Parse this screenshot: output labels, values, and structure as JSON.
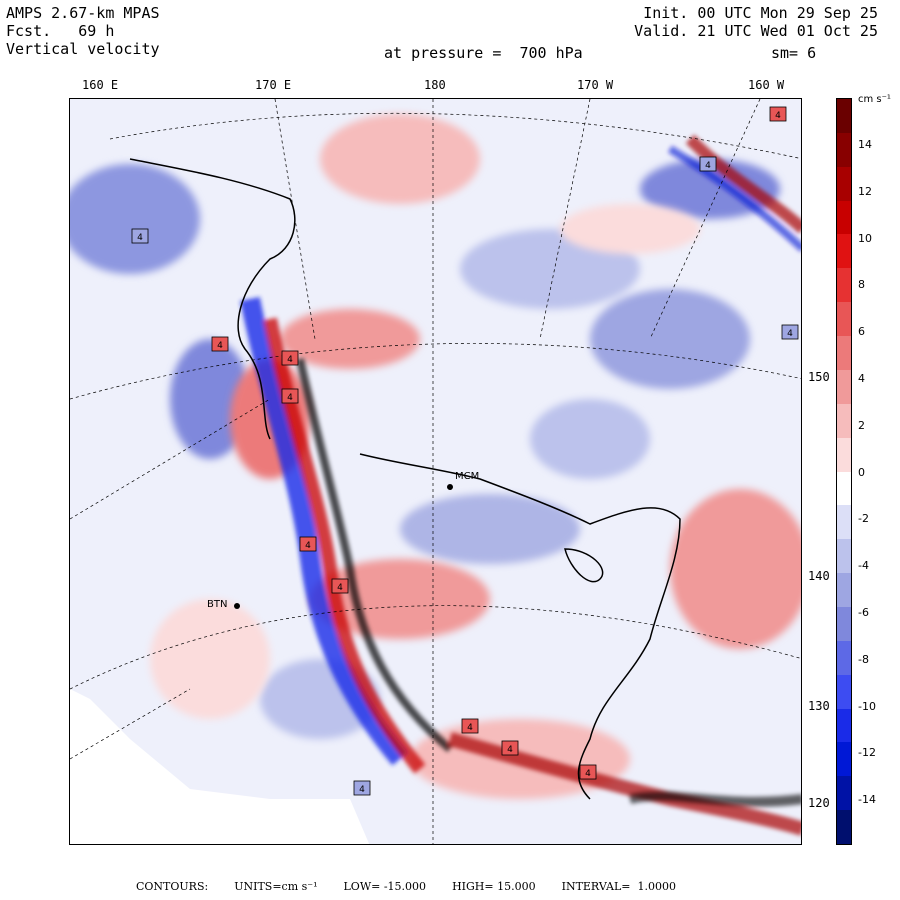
{
  "header": {
    "model": "AMPS 2.67-km MPAS",
    "fcst": "Fcst.   69 h",
    "field": "Vertical velocity",
    "init": "Init. 00 UTC Mon 29 Sep 25",
    "valid": "Valid. 21 UTC Wed 01 Oct 25",
    "pressure": "at pressure =  700 hPa",
    "smooth": "sm= 6"
  },
  "map": {
    "lon_labels": [
      "160 E",
      "170 E",
      "180",
      "170 W",
      "160 W"
    ],
    "lat_labels": [
      "150 W",
      "140 W",
      "130 W",
      "120 W"
    ],
    "stations": [
      "MCM",
      "BTN"
    ],
    "extreme_marker": "4"
  },
  "colorbar": {
    "unit": "cm s⁻¹",
    "ticks": [
      "14",
      "12",
      "10",
      "8",
      "6",
      "4",
      "2",
      "0",
      "-2",
      "-4",
      "-6",
      "-8",
      "-10",
      "-12",
      "-14"
    ],
    "colors": [
      "#000f6e",
      "#0012a6",
      "#0018d6",
      "#1a2be8",
      "#3d4cf2",
      "#5d69e6",
      "#7f88dc",
      "#9ea6e2",
      "#bcc2ec",
      "#dcdff7",
      "#ffffff",
      "#fbdcdc",
      "#f6bcbc",
      "#f09a9a",
      "#ec7a7a",
      "#e85656",
      "#e63232",
      "#e01212",
      "#c80000",
      "#a80000",
      "#880000",
      "#6a0000"
    ]
  },
  "footer": {
    "contours": "CONTOURS:",
    "units": "UNITS=cm s⁻¹",
    "low": "LOW= -15.000",
    "high": "HIGH= 15.000",
    "interval": "INTERVAL=  1.0000"
  }
}
